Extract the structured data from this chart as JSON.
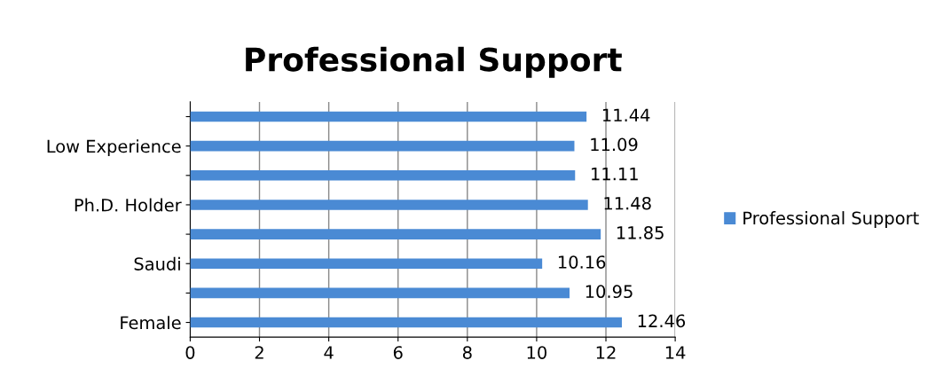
{
  "chart_data": {
    "type": "bar",
    "orientation": "horizontal",
    "title": "Professional Support",
    "categories": [
      null,
      "Low Experience",
      null,
      "Ph.D. Holder",
      null,
      "Saudi",
      null,
      "Female"
    ],
    "series": [
      {
        "name": "Professional Support",
        "color": "#4a8ad4",
        "values": [
          11.44,
          11.09,
          11.11,
          11.48,
          11.85,
          10.16,
          10.95,
          12.46
        ]
      }
    ],
    "xlim": [
      0,
      14
    ],
    "xticks": [
      0,
      2,
      4,
      6,
      8,
      10,
      12,
      14
    ],
    "grid": "x",
    "legend": "right",
    "data_labels": true
  }
}
